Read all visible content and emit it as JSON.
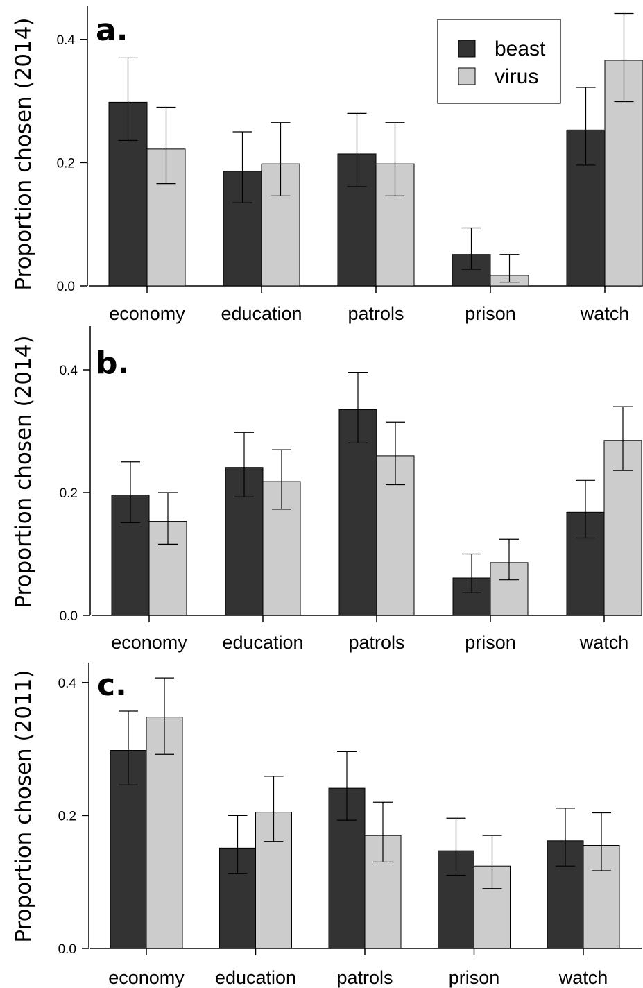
{
  "colors": {
    "beast": "#333333",
    "virus": "#cccccc",
    "axis": "#000000"
  },
  "chart_data": [
    {
      "type": "bar",
      "panel_label": "a.",
      "ylabel": "Proportion chosen (2014)",
      "ylim": [
        0,
        0.45
      ],
      "yticks": [
        "0.0",
        "0.2",
        "0.4"
      ],
      "categories": [
        "economy",
        "education",
        "patrols",
        "prison",
        "watch"
      ],
      "legend": {
        "position": "top-right",
        "entries": [
          "beast",
          "virus"
        ]
      },
      "series": [
        {
          "name": "beast",
          "values": [
            0.298,
            0.186,
            0.214,
            0.051,
            0.253
          ],
          "err_low": [
            0.236,
            0.135,
            0.161,
            0.027,
            0.196
          ],
          "err_high": [
            0.37,
            0.25,
            0.28,
            0.094,
            0.322
          ]
        },
        {
          "name": "virus",
          "values": [
            0.222,
            0.198,
            0.198,
            0.017,
            0.366
          ],
          "err_low": [
            0.166,
            0.146,
            0.146,
            0.006,
            0.299
          ],
          "err_high": [
            0.29,
            0.265,
            0.265,
            0.051,
            0.442
          ]
        }
      ]
    },
    {
      "type": "bar",
      "panel_label": "b.",
      "ylabel": "Proportion chosen (2014)",
      "ylim": [
        0,
        0.47
      ],
      "yticks": [
        "0.0",
        "0.2",
        "0.4"
      ],
      "categories": [
        "economy",
        "education",
        "patrols",
        "prison",
        "watch"
      ],
      "series": [
        {
          "name": "beast",
          "values": [
            0.196,
            0.241,
            0.335,
            0.061,
            0.168
          ],
          "err_low": [
            0.151,
            0.193,
            0.281,
            0.037,
            0.126
          ],
          "err_high": [
            0.25,
            0.298,
            0.396,
            0.1,
            0.22
          ]
        },
        {
          "name": "virus",
          "values": [
            0.153,
            0.218,
            0.26,
            0.086,
            0.285
          ],
          "err_low": [
            0.116,
            0.173,
            0.213,
            0.058,
            0.236
          ],
          "err_high": [
            0.2,
            0.27,
            0.315,
            0.124,
            0.34
          ]
        }
      ]
    },
    {
      "type": "bar",
      "panel_label": "c.",
      "ylabel": "Proportion chosen (2011)",
      "ylim": [
        0,
        0.43
      ],
      "yticks": [
        "0.0",
        "0.2",
        "0.4"
      ],
      "categories": [
        "economy",
        "education",
        "patrols",
        "prison",
        "watch"
      ],
      "series": [
        {
          "name": "beast",
          "values": [
            0.298,
            0.151,
            0.241,
            0.147,
            0.162
          ],
          "err_low": [
            0.246,
            0.113,
            0.193,
            0.11,
            0.124
          ],
          "err_high": [
            0.357,
            0.2,
            0.296,
            0.196,
            0.211
          ]
        },
        {
          "name": "virus",
          "values": [
            0.348,
            0.205,
            0.17,
            0.124,
            0.155
          ],
          "err_low": [
            0.292,
            0.161,
            0.13,
            0.09,
            0.117
          ],
          "err_high": [
            0.407,
            0.259,
            0.22,
            0.17,
            0.204
          ]
        }
      ]
    }
  ]
}
